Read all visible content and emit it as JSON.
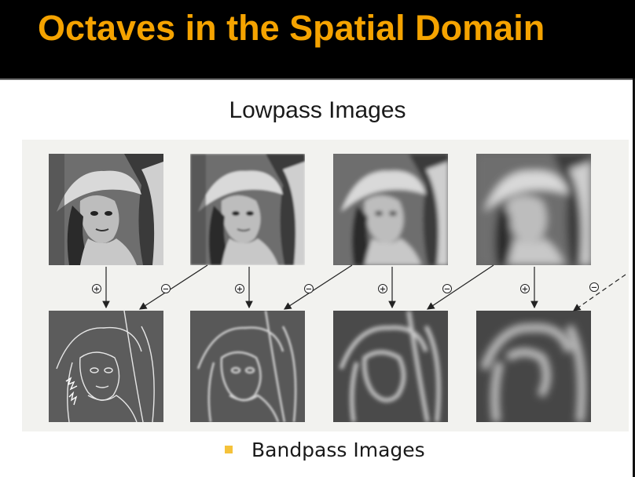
{
  "title": "Octaves in the Spatial Domain",
  "lowpass_label": "Lowpass Images",
  "bandpass_label": "Bandpass Images",
  "operators": {
    "plus": "+",
    "minus": "−"
  },
  "colors": {
    "title_bar": "#000000",
    "title_text": "#f5a300",
    "bullet": "#f5c23a",
    "figure_bg": "#f2f2ef"
  },
  "icons": {
    "lowpass": [
      "photo-portrait-icon",
      "photo-portrait-icon",
      "photo-portrait-icon",
      "photo-portrait-icon"
    ],
    "bandpass": [
      "photo-edges-icon",
      "photo-edges-icon",
      "photo-edges-icon",
      "photo-edges-icon"
    ]
  }
}
